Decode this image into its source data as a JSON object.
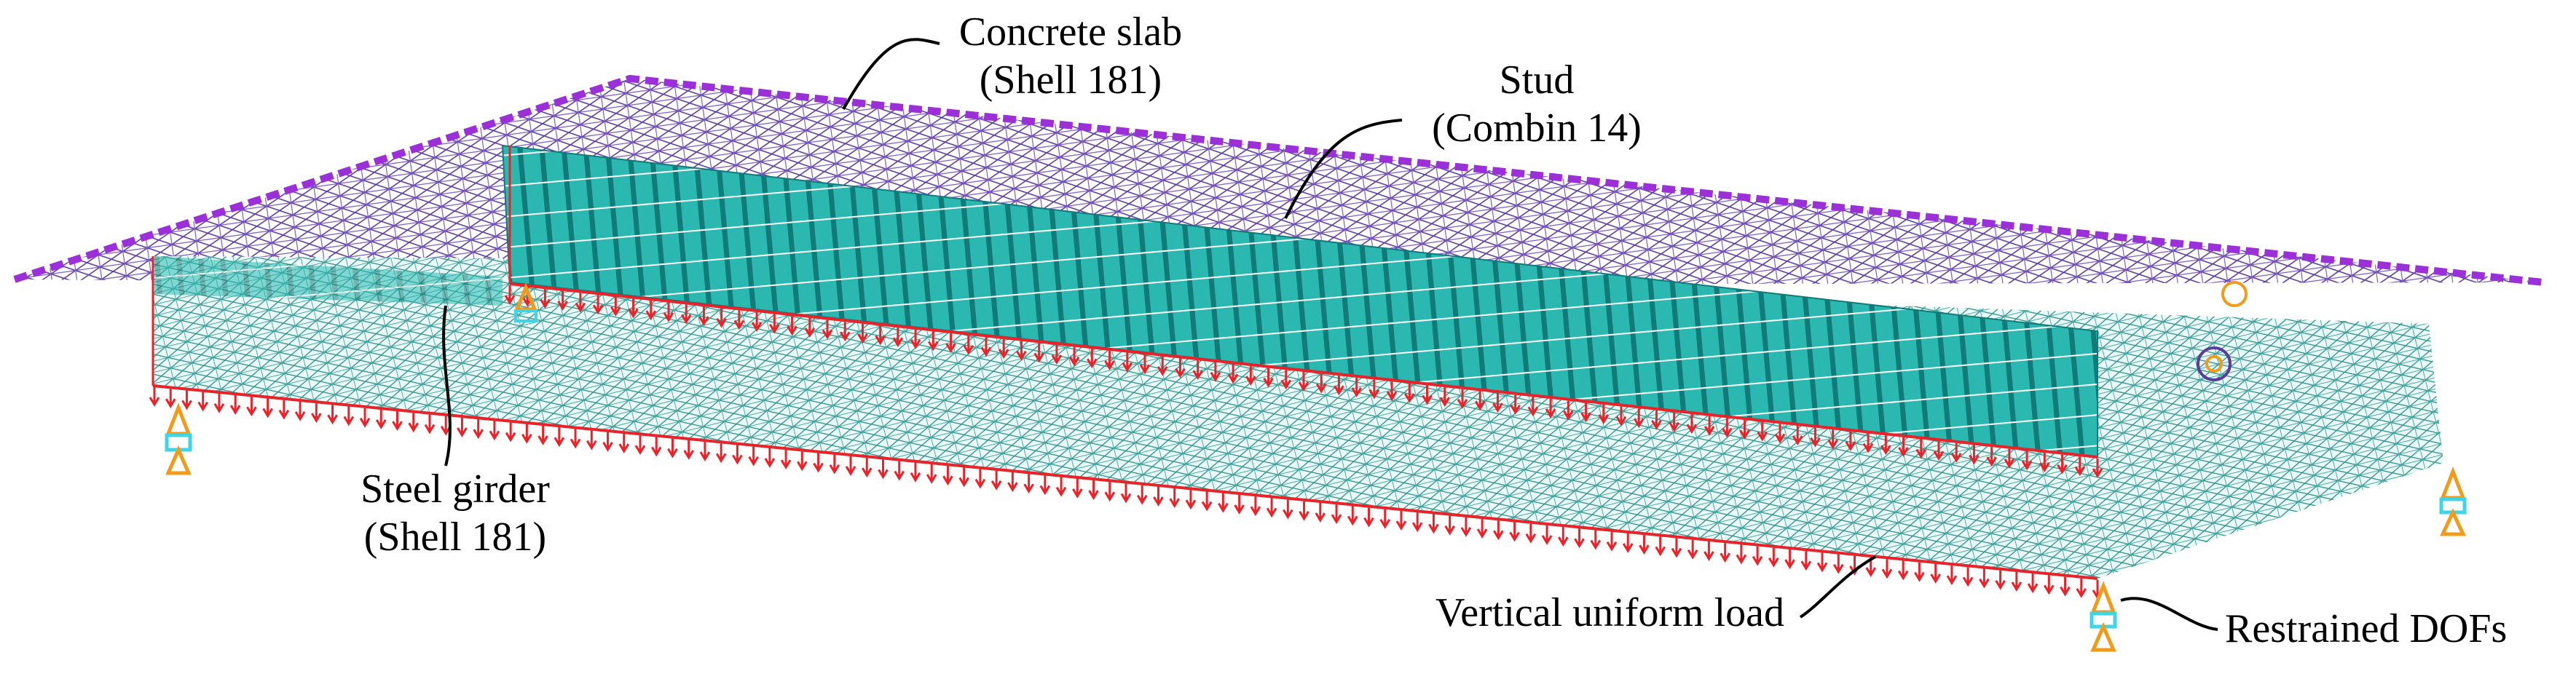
{
  "labels": {
    "concrete_slab": {
      "line1": "Concrete slab",
      "line2": "(Shell 181)"
    },
    "stud": {
      "line1": "Stud",
      "line2": "(Combin 14)"
    },
    "steel_girder": {
      "line1": "Steel girder",
      "line2": "(Shell 181)"
    },
    "load": "Vertical uniform load",
    "restraint": "Restrained DOFs"
  },
  "colors": {
    "slab_edge": "#9b30d9",
    "slab_mesh": "#5a3c9c",
    "stud": "#2ab8b0",
    "stud_dark": "#127a78",
    "girder_mesh": "#2f8f8a",
    "load_arrow": "#e8232a",
    "support_orange": "#f29b1b",
    "support_cyan": "#3fd4e6",
    "leader": "#000000"
  }
}
